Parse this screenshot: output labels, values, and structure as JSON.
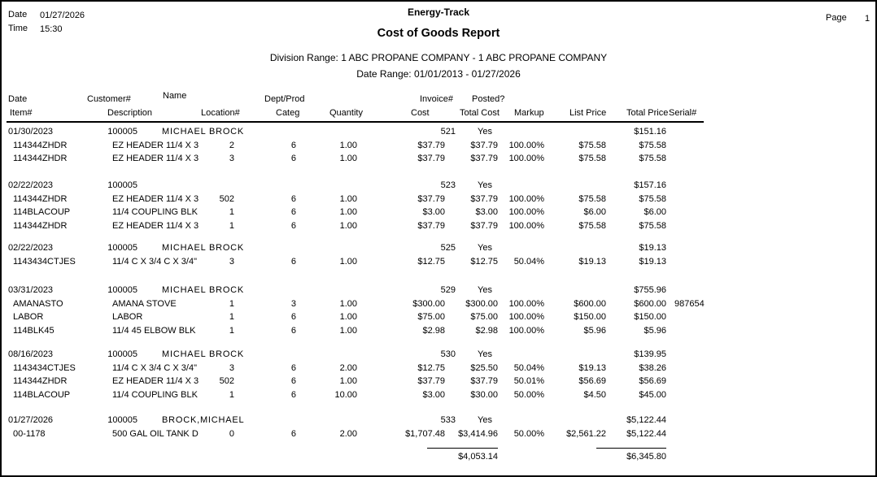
{
  "page": {
    "date_label": "Date",
    "date_value": "01/27/2026",
    "time_label": "Time",
    "time_value": "15:30",
    "app_title": "Energy-Track",
    "report_title": "Cost of Goods Report",
    "division_range": "Division Range: 1 ABC PROPANE COMPANY - 1 ABC PROPANE COMPANY",
    "date_range": "Date Range: 01/01/2013 - 01/27/2026",
    "page_label": "Page",
    "page_number": "1"
  },
  "colors": {
    "text": "#000000",
    "background": "#ffffff",
    "border": "#000000"
  },
  "columns": {
    "line1": {
      "date": "Date",
      "customer": "Customer#",
      "name": "Name",
      "dept_prod": "Dept/Prod",
      "invoice": "Invoice#",
      "posted": "Posted?"
    },
    "line2": {
      "item": "Item#",
      "description": "Description",
      "location": "Location#",
      "categ": "Categ",
      "quantity": "Quantity",
      "cost": "Cost",
      "total_cost": "Total Cost",
      "markup": "Markup",
      "list_price": "List Price",
      "total_price": "Total Price",
      "serial": "Serial#"
    }
  },
  "groups": [
    {
      "date": "01/30/2023",
      "customer": "100005",
      "name": "MICHAEL BROCK",
      "invoice": "521",
      "posted": "Yes",
      "total_price": "$151.16",
      "rows": [
        {
          "item": "114344ZHDR",
          "desc": "EZ HEADER 11/4 X 3",
          "loc": "2",
          "categ": "6",
          "qty": "1.00",
          "cost": "$37.79",
          "total_cost": "$37.79",
          "markup": "100.00%",
          "list_price": "$75.58",
          "total_price": "$75.58",
          "serial": ""
        },
        {
          "item": "114344ZHDR",
          "desc": "EZ HEADER 11/4 X 3",
          "loc": "3",
          "categ": "6",
          "qty": "1.00",
          "cost": "$37.79",
          "total_cost": "$37.79",
          "markup": "100.00%",
          "list_price": "$75.58",
          "total_price": "$75.58",
          "serial": ""
        }
      ]
    },
    {
      "date": "02/22/2023",
      "customer": "100005",
      "name": "",
      "invoice": "523",
      "posted": "Yes",
      "total_price": "$157.16",
      "rows": [
        {
          "item": "114344ZHDR",
          "desc": "EZ HEADER 11/4 X 3",
          "loc": "502",
          "categ": "6",
          "qty": "1.00",
          "cost": "$37.79",
          "total_cost": "$37.79",
          "markup": "100.00%",
          "list_price": "$75.58",
          "total_price": "$75.58",
          "serial": ""
        },
        {
          "item": "114BLACOUP",
          "desc": "11/4 COUPLING BLK",
          "loc": "1",
          "categ": "6",
          "qty": "1.00",
          "cost": "$3.00",
          "total_cost": "$3.00",
          "markup": "100.00%",
          "list_price": "$6.00",
          "total_price": "$6.00",
          "serial": ""
        },
        {
          "item": "114344ZHDR",
          "desc": "EZ HEADER 11/4 X 3",
          "loc": "1",
          "categ": "6",
          "qty": "1.00",
          "cost": "$37.79",
          "total_cost": "$37.79",
          "markup": "100.00%",
          "list_price": "$75.58",
          "total_price": "$75.58",
          "serial": ""
        }
      ]
    },
    {
      "date": "02/22/2023",
      "customer": "100005",
      "name": "MICHAEL BROCK",
      "invoice": "525",
      "posted": "Yes",
      "total_price": "$19.13",
      "rows": [
        {
          "item": "1143434CTJES",
          "desc": "11/4 C X 3/4 C X 3/4\"",
          "loc": "3",
          "categ": "6",
          "qty": "1.00",
          "cost": "$12.75",
          "total_cost": "$12.75",
          "markup": "50.04%",
          "list_price": "$19.13",
          "total_price": "$19.13",
          "serial": ""
        }
      ]
    },
    {
      "date": "03/31/2023",
      "customer": "100005",
      "name": "MICHAEL BROCK",
      "invoice": "529",
      "posted": "Yes",
      "total_price": "$755.96",
      "rows": [
        {
          "item": "AMANASTO",
          "desc": "AMANA STOVE",
          "loc": "1",
          "categ": "3",
          "qty": "1.00",
          "cost": "$300.00",
          "total_cost": "$300.00",
          "markup": "100.00%",
          "list_price": "$600.00",
          "total_price": "$600.00",
          "serial": "987654"
        },
        {
          "item": "LABOR",
          "desc": "LABOR",
          "loc": "1",
          "categ": "6",
          "qty": "1.00",
          "cost": "$75.00",
          "total_cost": "$75.00",
          "markup": "100.00%",
          "list_price": "$150.00",
          "total_price": "$150.00",
          "serial": ""
        },
        {
          "item": "114BLK45",
          "desc": "11/4 45 ELBOW BLK",
          "loc": "1",
          "categ": "6",
          "qty": "1.00",
          "cost": "$2.98",
          "total_cost": "$2.98",
          "markup": "100.00%",
          "list_price": "$5.96",
          "total_price": "$5.96",
          "serial": ""
        }
      ]
    },
    {
      "date": "08/16/2023",
      "customer": "100005",
      "name": "MICHAEL BROCK",
      "invoice": "530",
      "posted": "Yes",
      "total_price": "$139.95",
      "rows": [
        {
          "item": "1143434CTJES",
          "desc": "11/4 C X 3/4 C X 3/4\"",
          "loc": "3",
          "categ": "6",
          "qty": "2.00",
          "cost": "$12.75",
          "total_cost": "$25.50",
          "markup": "50.04%",
          "list_price": "$19.13",
          "total_price": "$38.26",
          "serial": ""
        },
        {
          "item": "114344ZHDR",
          "desc": "EZ HEADER 11/4 X 3",
          "loc": "502",
          "categ": "6",
          "qty": "1.00",
          "cost": "$37.79",
          "total_cost": "$37.79",
          "markup": "50.01%",
          "list_price": "$56.69",
          "total_price": "$56.69",
          "serial": ""
        },
        {
          "item": "114BLACOUP",
          "desc": "11/4 COUPLING BLK",
          "loc": "1",
          "categ": "6",
          "qty": "10.00",
          "cost": "$3.00",
          "total_cost": "$30.00",
          "markup": "50.00%",
          "list_price": "$4.50",
          "total_price": "$45.00",
          "serial": ""
        }
      ]
    },
    {
      "date": "01/27/2026",
      "customer": "100005",
      "name": "BROCK,MICHAEL",
      "invoice": "533",
      "posted": "Yes",
      "total_price": "$5,122.44",
      "rows": [
        {
          "item": "00-1178",
          "desc": "500 GAL OIL TANK D",
          "loc": "0",
          "categ": "6",
          "qty": "2.00",
          "cost": "$1,707.48",
          "total_cost": "$3,414.96",
          "markup": "50.00%",
          "list_price": "$2,561.22",
          "total_price": "$5,122.44",
          "serial": ""
        }
      ]
    }
  ],
  "totals": {
    "total_cost": "$4,053.14",
    "total_price": "$6,345.80"
  }
}
